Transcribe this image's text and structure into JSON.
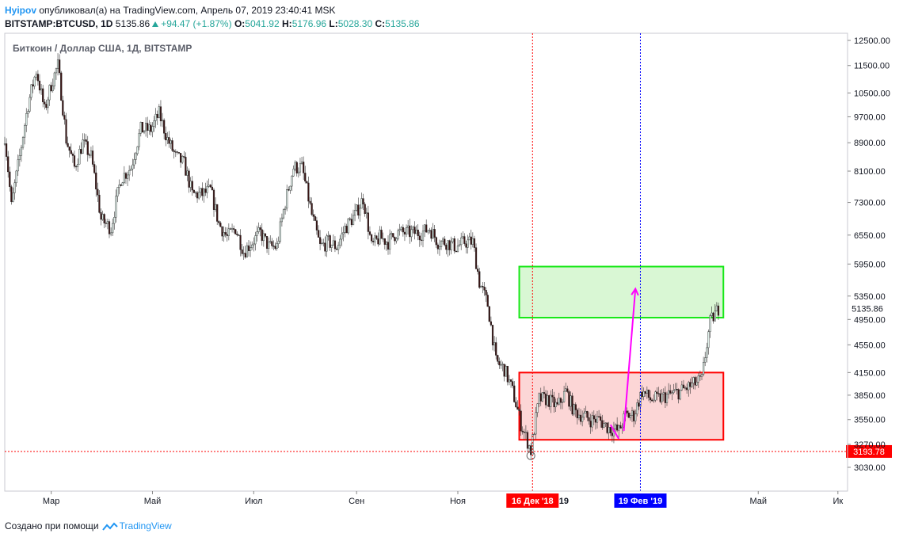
{
  "header": {
    "author": "Hyipov",
    "published_text": "опубликовал(а) на TradingView.com, Апрель 07, 2019 23:40:41 MSK",
    "symbol": "BITSTAMP:BTCUSD, 1D",
    "last": "5135.86",
    "change": "+94.47 (+1.87%)",
    "o_label": "O:",
    "o_value": "5041.92",
    "h_label": "H:",
    "h_value": "5176.96",
    "l_label": "L:",
    "l_value": "5028.30",
    "c_label": "C:",
    "c_value": "5135.86"
  },
  "chart_data": {
    "type": "candlestick",
    "title": "Биткоин / Доллар США, 1Д, BITSTAMP",
    "y_scale": "log",
    "ylim": [
      2800,
      12800
    ],
    "y_ticks": [
      "12500.00",
      "11500.00",
      "10500.00",
      "9700.00",
      "8900.00",
      "8100.00",
      "7300.00",
      "6550.00",
      "5950.00",
      "5350.00",
      "4950.00",
      "4550.00",
      "4150.00",
      "3850.00",
      "3550.00",
      "3270.00",
      "3030.00"
    ],
    "x_ticks": [
      "Мар",
      "Май",
      "Июл",
      "Сен",
      "Ноя",
      "Май",
      "Ик"
    ],
    "x_range": [
      "2018-02-01",
      "2019-06-20"
    ],
    "last_price": "5135.86",
    "support_level": "3193.78",
    "vertical_markers": [
      {
        "date": "2018-12-16",
        "label": "16 Дек '18",
        "color": "#ff0000"
      },
      {
        "date": "2019-02-19",
        "label": "19 Фев '19",
        "color": "#0000ff"
      }
    ],
    "partial_tick": "19",
    "zones": [
      {
        "name": "resistance",
        "x0": "2018-12-08",
        "x1": "2019-04-10",
        "y0": 4980,
        "y1": 5900,
        "fill": "#d9f7d4",
        "stroke": "#17e817"
      },
      {
        "name": "range",
        "x0": "2018-12-08",
        "x1": "2019-04-10",
        "y0": 3320,
        "y1": 4150,
        "fill": "#fcd6d6",
        "stroke": "#ff0000"
      }
    ],
    "arrows": [
      {
        "from": [
          "2019-02-09",
          3420
        ],
        "to": [
          "2019-02-16",
          5480
        ],
        "color": "#ff00ff"
      },
      {
        "from": [
          "2019-02-06",
          3330
        ],
        "to": [
          "2019-02-01",
          3490
        ],
        "color": "#ff00ff"
      }
    ],
    "price_path": [
      [
        "2018-02-01",
        9100
      ],
      [
        "2018-02-05",
        7200
      ],
      [
        "2018-02-10",
        8500
      ],
      [
        "2018-02-15",
        10100
      ],
      [
        "2018-02-20",
        11300
      ],
      [
        "2018-02-25",
        9900
      ],
      [
        "2018-03-01",
        10800
      ],
      [
        "2018-03-05",
        11500
      ],
      [
        "2018-03-10",
        9000
      ],
      [
        "2018-03-15",
        8200
      ],
      [
        "2018-03-20",
        8900
      ],
      [
        "2018-03-25",
        8500
      ],
      [
        "2018-03-31",
        6900
      ],
      [
        "2018-04-06",
        6700
      ],
      [
        "2018-04-12",
        7900
      ],
      [
        "2018-04-18",
        8200
      ],
      [
        "2018-04-24",
        9300
      ],
      [
        "2018-04-30",
        9300
      ],
      [
        "2018-05-05",
        9800
      ],
      [
        "2018-05-10",
        9000
      ],
      [
        "2018-05-15",
        8500
      ],
      [
        "2018-05-20",
        8300
      ],
      [
        "2018-05-25",
        7500
      ],
      [
        "2018-05-31",
        7500
      ],
      [
        "2018-06-05",
        7600
      ],
      [
        "2018-06-10",
        6800
      ],
      [
        "2018-06-15",
        6500
      ],
      [
        "2018-06-20",
        6700
      ],
      [
        "2018-06-25",
        6200
      ],
      [
        "2018-06-30",
        6400
      ],
      [
        "2018-07-05",
        6600
      ],
      [
        "2018-07-10",
        6300
      ],
      [
        "2018-07-15",
        6300
      ],
      [
        "2018-07-20",
        7300
      ],
      [
        "2018-07-25",
        8200
      ],
      [
        "2018-07-30",
        8200
      ],
      [
        "2018-08-05",
        7000
      ],
      [
        "2018-08-10",
        6300
      ],
      [
        "2018-08-15",
        6400
      ],
      [
        "2018-08-20",
        6300
      ],
      [
        "2018-08-25",
        6700
      ],
      [
        "2018-08-31",
        7000
      ],
      [
        "2018-09-05",
        7400
      ],
      [
        "2018-09-10",
        6300
      ],
      [
        "2018-09-15",
        6500
      ],
      [
        "2018-09-20",
        6400
      ],
      [
        "2018-09-25",
        6600
      ],
      [
        "2018-09-30",
        6600
      ],
      [
        "2018-10-05",
        6600
      ],
      [
        "2018-10-10",
        6600
      ],
      [
        "2018-10-15",
        6700
      ],
      [
        "2018-10-20",
        6400
      ],
      [
        "2018-10-25",
        6400
      ],
      [
        "2018-10-31",
        6300
      ],
      [
        "2018-11-05",
        6400
      ],
      [
        "2018-11-10",
        6400
      ],
      [
        "2018-11-14",
        5600
      ],
      [
        "2018-11-19",
        5200
      ],
      [
        "2018-11-24",
        4300
      ],
      [
        "2018-11-29",
        4200
      ],
      [
        "2018-12-04",
        3900
      ],
      [
        "2018-12-09",
        3500
      ],
      [
        "2018-12-15",
        3200
      ],
      [
        "2018-12-20",
        3800
      ],
      [
        "2018-12-25",
        3800
      ],
      [
        "2018-12-31",
        3700
      ],
      [
        "2019-01-05",
        3900
      ],
      [
        "2019-01-10",
        3650
      ],
      [
        "2019-01-15",
        3600
      ],
      [
        "2019-01-20",
        3550
      ],
      [
        "2019-01-25",
        3550
      ],
      [
        "2019-01-31",
        3450
      ],
      [
        "2019-02-06",
        3420
      ],
      [
        "2019-02-10",
        3600
      ],
      [
        "2019-02-15",
        3600
      ],
      [
        "2019-02-20",
        3900
      ],
      [
        "2019-02-25",
        3800
      ],
      [
        "2019-03-01",
        3800
      ],
      [
        "2019-03-08",
        3850
      ],
      [
        "2019-03-15",
        3900
      ],
      [
        "2019-03-22",
        3980
      ],
      [
        "2019-03-28",
        4050
      ],
      [
        "2019-04-02",
        4900
      ],
      [
        "2019-04-07",
        5135
      ]
    ]
  },
  "footer": {
    "created_with": "Создано при помощи",
    "brand": "TradingView"
  }
}
